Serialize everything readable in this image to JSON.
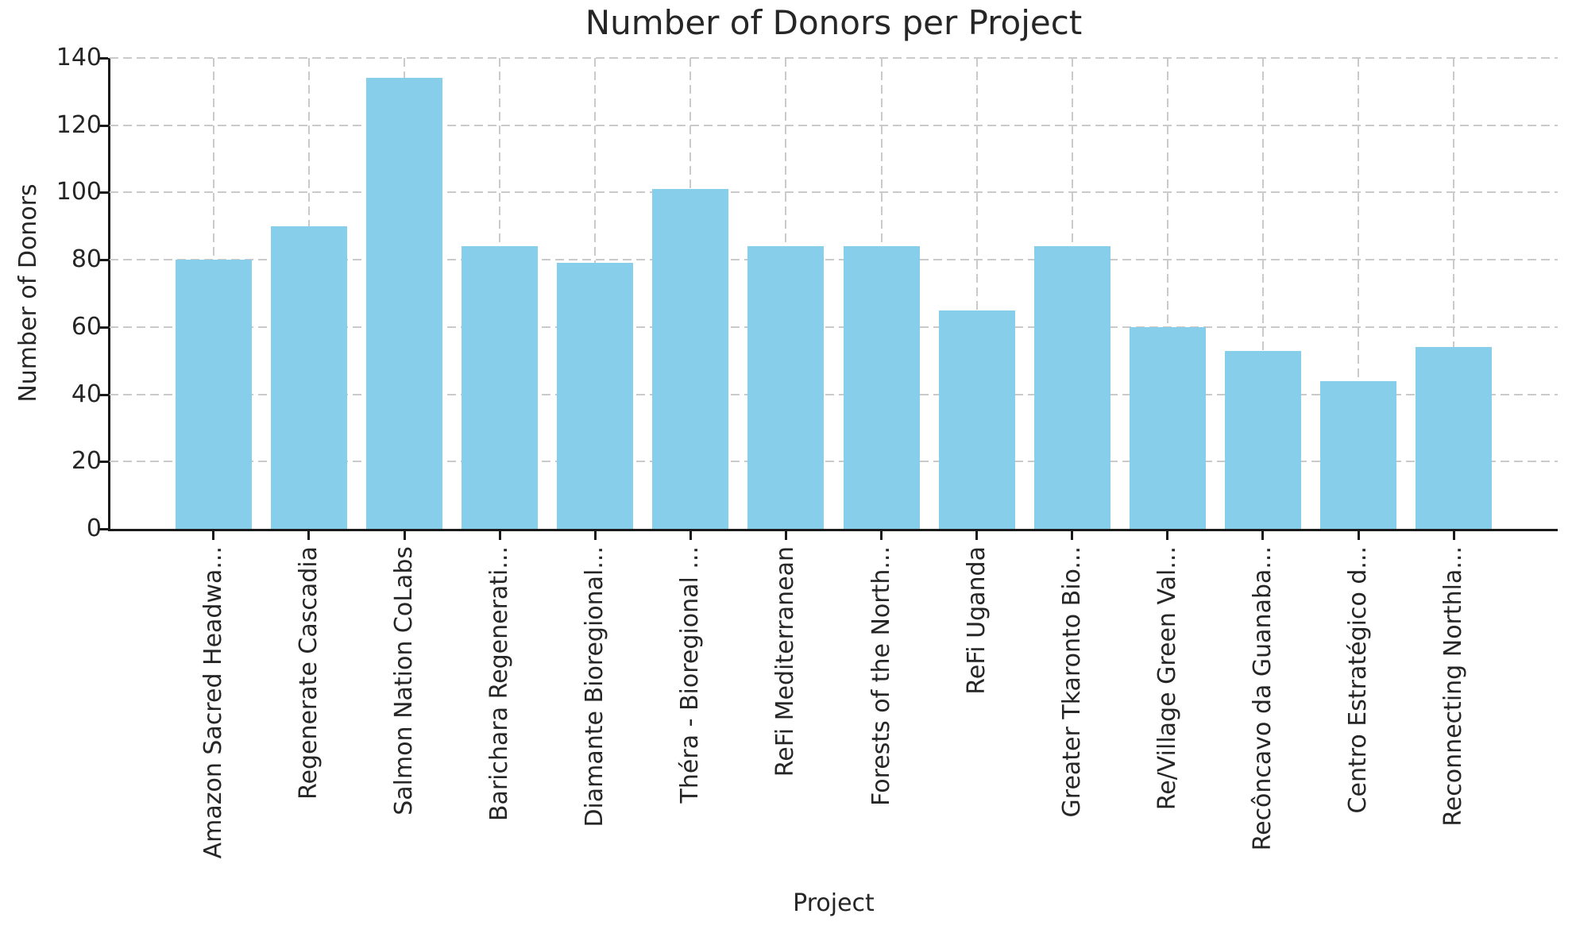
{
  "chart_data": {
    "type": "bar",
    "title": "Number of Donors per Project",
    "xlabel": "Project",
    "ylabel": "Number of Donors",
    "categories": [
      "Amazon Sacred Headwa...",
      "Regenerate Cascadia",
      "Salmon Nation CoLabs",
      "Barichara Regenerati...",
      "Diamante Bioregional...",
      "Théra - Bioregional ...",
      "ReFi Mediterranean",
      "Forests of the North...",
      "ReFi Uganda",
      "Greater Tkaronto Bio...",
      "Re/Village Green Val...",
      "Recôncavo da Guanaba...",
      "Centro Estratégico d...",
      "Reconnecting Northla..."
    ],
    "values": [
      80,
      90,
      134,
      84,
      79,
      101,
      84,
      84,
      65,
      84,
      60,
      53,
      44,
      54
    ],
    "ylim": [
      0,
      140
    ],
    "yticks": [
      0,
      20,
      40,
      60,
      80,
      100,
      120,
      140
    ],
    "bar_color": "#87CEEB",
    "grid": true,
    "grid_style": "dashed",
    "grid_color": "#cacaca",
    "text_color": "#262626",
    "axis_color": "#1a1a1a",
    "background_color": "#ffffff",
    "legend": "none",
    "x_tick_rotation_deg": 90
  }
}
